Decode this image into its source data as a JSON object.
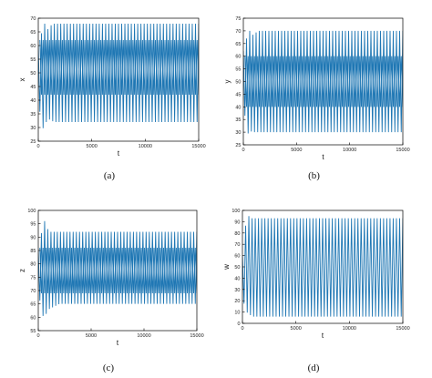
{
  "chart_data": [
    {
      "type": "line",
      "caption": "(a)",
      "xlabel": "t",
      "ylabel": "x",
      "xlim": [
        0,
        15000
      ],
      "ylim": [
        25,
        70
      ],
      "xticks": [
        0,
        5000,
        10000,
        15000
      ],
      "yticks": [
        25,
        30,
        35,
        40,
        45,
        50,
        55,
        60,
        65,
        70
      ],
      "color": "#1f77b4",
      "grid": false,
      "series": [
        {
          "x": [
            0,
            200,
            400,
            600,
            800,
            1000,
            1500,
            2000,
            3000,
            5000,
            7500,
            10000,
            12500,
            15000
          ],
          "upper": [
            60,
            67,
            62,
            68,
            65,
            67,
            68,
            68,
            68,
            68,
            68,
            68,
            68,
            68
          ],
          "lower": [
            35,
            36,
            30,
            29,
            33,
            33,
            32,
            32,
            32,
            32,
            32,
            32,
            32,
            32
          ]
        }
      ],
      "inner_band": [
        42,
        62
      ]
    },
    {
      "type": "line",
      "caption": "(b)",
      "xlabel": "t",
      "ylabel": "y",
      "xlim": [
        0,
        15000
      ],
      "ylim": [
        25,
        75
      ],
      "xticks": [
        0,
        5000,
        10000,
        15000
      ],
      "yticks": [
        25,
        30,
        35,
        40,
        45,
        50,
        55,
        60,
        65,
        70,
        75
      ],
      "color": "#1f77b4",
      "grid": false,
      "series": [
        {
          "x": [
            0,
            200,
            400,
            600,
            800,
            1000,
            1500,
            2000,
            3000,
            5000,
            7500,
            10000,
            12500,
            15000
          ],
          "upper": [
            62,
            68,
            66,
            70,
            68,
            69,
            70,
            70,
            70,
            70,
            70,
            70,
            70,
            70
          ],
          "lower": [
            38,
            36,
            30,
            28,
            31,
            30,
            30,
            30,
            30,
            30,
            30,
            30,
            30,
            30
          ]
        }
      ],
      "inner_band": [
        40,
        60
      ]
    },
    {
      "type": "line",
      "caption": "(c)",
      "xlabel": "t",
      "ylabel": "z",
      "xlim": [
        0,
        15000
      ],
      "ylim": [
        55,
        100
      ],
      "xticks": [
        0,
        5000,
        10000,
        15000
      ],
      "yticks": [
        55,
        60,
        65,
        70,
        75,
        80,
        85,
        90,
        95,
        100
      ],
      "color": "#1f77b4",
      "grid": false,
      "series": [
        {
          "x": [
            0,
            200,
            400,
            600,
            800,
            1000,
            1500,
            2000,
            3000,
            5000,
            7500,
            10000,
            12500,
            15000
          ],
          "upper": [
            85,
            90,
            93,
            96,
            94,
            92,
            92,
            92,
            92,
            92,
            92,
            92,
            92,
            92
          ],
          "lower": [
            70,
            65,
            61,
            59,
            62,
            63,
            64,
            65,
            65,
            65,
            65,
            65,
            65,
            65
          ]
        }
      ],
      "inner_band": [
        69,
        86
      ]
    },
    {
      "type": "line",
      "caption": "(d)",
      "xlabel": "t",
      "ylabel": "w",
      "xlim": [
        0,
        15000
      ],
      "ylim": [
        0,
        100
      ],
      "xticks": [
        0,
        5000,
        10000,
        15000
      ],
      "yticks": [
        0,
        10,
        20,
        30,
        40,
        50,
        60,
        70,
        80,
        90,
        100
      ],
      "color": "#1f77b4",
      "grid": false,
      "series": [
        {
          "x": [
            0,
            200,
            400,
            600,
            800,
            1000,
            1500,
            2000,
            3000,
            5000,
            7500,
            10000,
            12500,
            15000
          ],
          "upper": [
            60,
            75,
            98,
            95,
            93,
            93,
            93,
            93,
            93,
            93,
            93,
            93,
            93,
            93
          ],
          "lower": [
            25,
            15,
            10,
            8,
            7,
            6,
            6,
            6,
            6,
            6,
            6,
            6,
            6,
            6
          ]
        }
      ],
      "inner_band": null
    }
  ]
}
